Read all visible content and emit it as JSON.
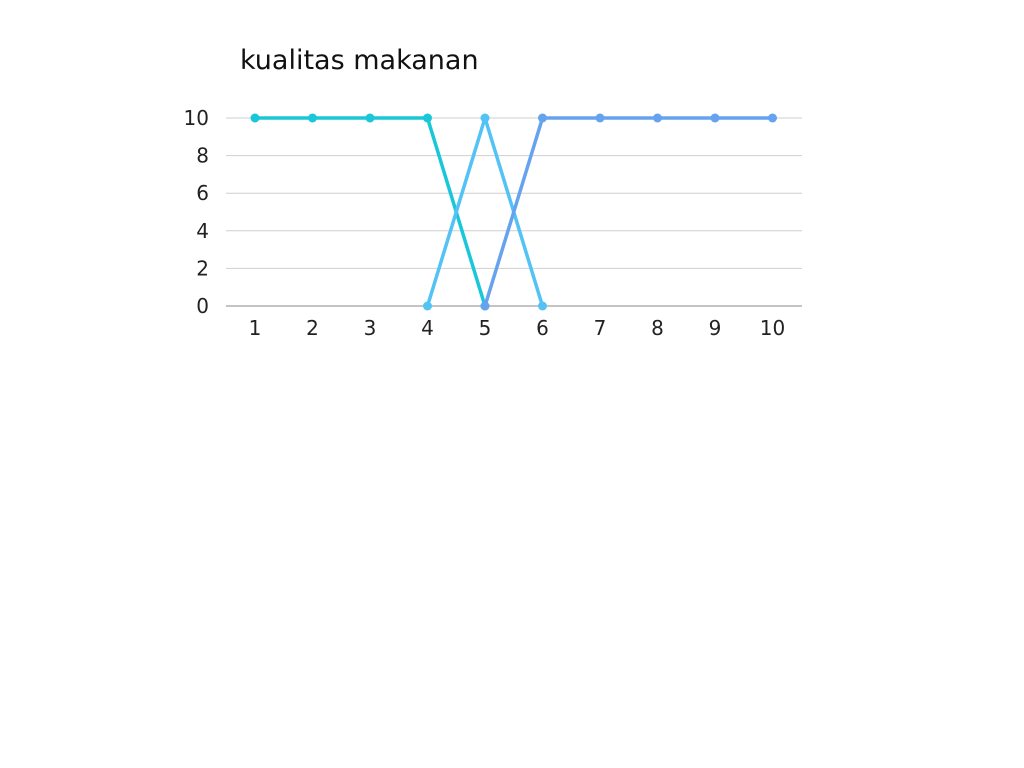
{
  "chart_data": {
    "type": "line",
    "title": "kualitas makanan",
    "xlabel": "",
    "ylabel": "",
    "x": [
      1,
      2,
      3,
      4,
      5,
      6,
      7,
      8,
      9,
      10
    ],
    "xticks": [
      "1",
      "2",
      "3",
      "4",
      "5",
      "6",
      "7",
      "8",
      "9",
      "10"
    ],
    "yticks": [
      0,
      2,
      4,
      6,
      8,
      10
    ],
    "ylim": [
      0,
      10
    ],
    "grid": true,
    "legend": "none",
    "series": [
      {
        "x": [
          1,
          2,
          3,
          4,
          5
        ],
        "values": [
          10,
          10,
          10,
          10,
          0
        ],
        "color": "#1ac7d8"
      },
      {
        "x": [
          4,
          5,
          6
        ],
        "values": [
          0,
          10,
          0
        ],
        "color": "#53c2f5"
      },
      {
        "x": [
          5,
          6,
          7,
          8,
          9,
          10
        ],
        "values": [
          0,
          10,
          10,
          10,
          10,
          10
        ],
        "color": "#66a3ee"
      }
    ]
  }
}
